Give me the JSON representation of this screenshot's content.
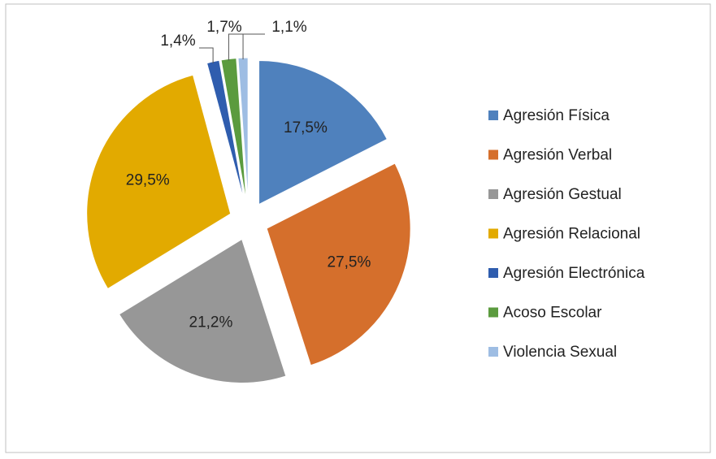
{
  "chart_data": {
    "type": "pie",
    "categories": [
      "Agresión Física",
      "Agresión Verbal",
      "Agresión Gestual",
      "Agresión Relacional",
      "Agresión Electrónica",
      "Acoso Escolar",
      "Violencia Sexual"
    ],
    "values": [
      17.5,
      27.5,
      21.2,
      29.5,
      1.4,
      1.7,
      1.1
    ],
    "value_labels": [
      "17,5%",
      "27,5%",
      "21,2%",
      "29,5%",
      "1,4%",
      "1,7%",
      "1,1%"
    ],
    "colors": [
      "#4f81bd",
      "#d56f2c",
      "#979797",
      "#e2aa00",
      "#2f5dae",
      "#5b9b3e",
      "#9ebde3"
    ],
    "legend": "right"
  }
}
